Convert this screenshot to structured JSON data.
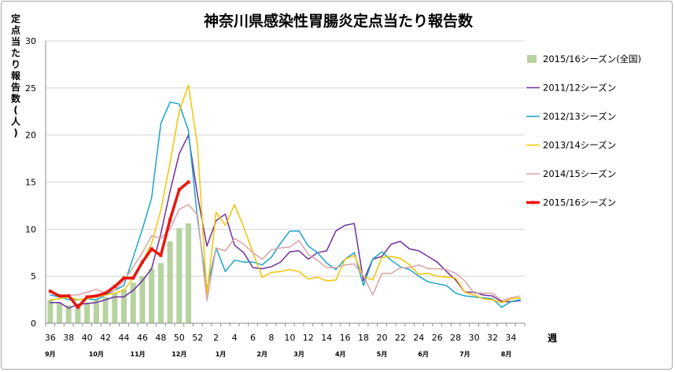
{
  "chart_data": {
    "type": "line",
    "title": "神奈川県感染性胃腸炎定点当たり報告数",
    "ylabel": "定点当たり報告数(人)",
    "xlabel": "週",
    "ylim": [
      0,
      30
    ],
    "yticks": [
      0,
      5,
      10,
      15,
      20,
      25,
      30
    ],
    "xlim": [
      36,
      87
    ],
    "xticks": [
      {
        "x": 36,
        "label": "36"
      },
      {
        "x": 38,
        "label": "38"
      },
      {
        "x": 40,
        "label": "40"
      },
      {
        "x": 42,
        "label": "42"
      },
      {
        "x": 44,
        "label": "44"
      },
      {
        "x": 46,
        "label": "46"
      },
      {
        "x": 48,
        "label": "48"
      },
      {
        "x": 50,
        "label": "50"
      },
      {
        "x": 52,
        "label": "52"
      },
      {
        "x": 54,
        "label": "2"
      },
      {
        "x": 56,
        "label": "4"
      },
      {
        "x": 58,
        "label": "6"
      },
      {
        "x": 60,
        "label": "8"
      },
      {
        "x": 62,
        "label": "10"
      },
      {
        "x": 64,
        "label": "12"
      },
      {
        "x": 66,
        "label": "14"
      },
      {
        "x": 68,
        "label": "16"
      },
      {
        "x": 70,
        "label": "18"
      },
      {
        "x": 72,
        "label": "20"
      },
      {
        "x": 74,
        "label": "22"
      },
      {
        "x": 76,
        "label": "24"
      },
      {
        "x": 78,
        "label": "26"
      },
      {
        "x": 80,
        "label": "28"
      },
      {
        "x": 82,
        "label": "30"
      },
      {
        "x": 84,
        "label": "32"
      },
      {
        "x": 86,
        "label": "34"
      }
    ],
    "months": [
      {
        "x": 36,
        "label": "9月"
      },
      {
        "x": 41,
        "label": "10月"
      },
      {
        "x": 45.5,
        "label": "11月"
      },
      {
        "x": 50,
        "label": "12月"
      },
      {
        "x": 54.5,
        "label": "1月"
      },
      {
        "x": 59,
        "label": "2月"
      },
      {
        "x": 63,
        "label": "3月"
      },
      {
        "x": 67.5,
        "label": "4月"
      },
      {
        "x": 72,
        "label": "5月"
      },
      {
        "x": 76.5,
        "label": "6月"
      },
      {
        "x": 81,
        "label": "7月"
      },
      {
        "x": 85.5,
        "label": "8月"
      }
    ],
    "grid": "horizontal",
    "legend_position": "right",
    "bars": {
      "name": "2015/16シーズン(全国)",
      "color": "#b6d3a0",
      "x": [
        36,
        37,
        38,
        39,
        40,
        41,
        42,
        43,
        44,
        45,
        46,
        47,
        48,
        49,
        50,
        51
      ],
      "values": [
        2.5,
        2.2,
        1.9,
        1.8,
        2.2,
        2.5,
        2.8,
        3.2,
        3.6,
        4.3,
        5.0,
        5.8,
        6.4,
        8.7,
        10.1,
        10.6
      ]
    },
    "series": [
      {
        "name": "2011/12シーズン",
        "color": "#7030a0",
        "width": 1.5,
        "x": [
          36,
          37,
          38,
          39,
          40,
          41,
          42,
          43,
          44,
          45,
          46,
          47,
          48,
          49,
          50,
          51,
          52,
          53,
          54,
          55,
          56,
          57,
          58,
          59,
          60,
          61,
          62,
          63,
          64,
          65,
          66,
          67,
          68,
          69,
          70,
          71,
          72,
          73,
          74,
          75,
          76,
          77,
          78,
          79,
          80,
          81,
          82,
          83,
          84,
          85,
          86,
          87
        ],
        "values": [
          2.2,
          2.2,
          1.6,
          2.0,
          2.1,
          2.2,
          2.5,
          2.8,
          2.8,
          3.5,
          4.5,
          5.8,
          9.5,
          14.0,
          18.0,
          20.0,
          13.5,
          8.2,
          10.9,
          11.6,
          8.3,
          7.5,
          5.9,
          5.8,
          6.0,
          6.5,
          7.6,
          7.7,
          6.8,
          7.5,
          7.7,
          9.8,
          10.4,
          10.6,
          4.5,
          6.8,
          7.1,
          8.4,
          8.7,
          7.9,
          7.7,
          7.1,
          6.5,
          5.5,
          4.6,
          3.3,
          3.3,
          3.0,
          2.9,
          2.3,
          2.3,
          2.4
        ]
      },
      {
        "name": "2012/13シーズン",
        "color": "#1aa4c8",
        "width": 1.5,
        "x": [
          36,
          37,
          38,
          39,
          40,
          41,
          42,
          43,
          44,
          45,
          46,
          47,
          48,
          49,
          50,
          51,
          52,
          53,
          54,
          55,
          56,
          57,
          58,
          59,
          60,
          61,
          62,
          63,
          64,
          65,
          66,
          67,
          68,
          69,
          70,
          71,
          72,
          73,
          74,
          75,
          76,
          77,
          78,
          79,
          80,
          81,
          82,
          83,
          84,
          85,
          86,
          87
        ],
        "values": [
          3.0,
          2.8,
          2.5,
          2.5,
          2.6,
          2.5,
          3.0,
          3.5,
          4.0,
          7.0,
          10.0,
          13.3,
          21.2,
          23.5,
          23.3,
          20.5,
          11.0,
          3.6,
          8.0,
          5.5,
          6.7,
          6.5,
          6.5,
          6.2,
          7.0,
          8.5,
          9.8,
          9.8,
          8.2,
          7.5,
          6.4,
          5.7,
          6.8,
          7.5,
          4.0,
          6.8,
          7.6,
          6.7,
          6.0,
          5.7,
          5.0,
          4.4,
          4.2,
          4.0,
          3.2,
          2.9,
          2.8,
          2.7,
          2.6,
          1.7,
          2.3,
          2.5
        ]
      },
      {
        "name": "2013/14シーズン",
        "color": "#f5c400",
        "width": 1.5,
        "x": [
          36,
          37,
          38,
          39,
          40,
          41,
          42,
          43,
          44,
          45,
          46,
          47,
          48,
          49,
          50,
          51,
          52,
          53,
          54,
          55,
          56,
          57,
          58,
          59,
          60,
          61,
          62,
          63,
          64,
          65,
          66,
          67,
          68,
          69,
          70,
          71,
          72,
          73,
          74,
          75,
          76,
          77,
          78,
          79,
          80,
          81,
          82,
          83,
          84,
          85,
          86,
          87
        ],
        "values": [
          2.5,
          2.6,
          2.8,
          2.5,
          2.6,
          2.8,
          3.0,
          3.2,
          3.5,
          4.8,
          6.5,
          8.5,
          12.0,
          17.0,
          22.5,
          25.3,
          18.8,
          3.0,
          11.8,
          10.4,
          12.6,
          10.2,
          7.5,
          4.9,
          5.4,
          5.5,
          5.7,
          5.5,
          4.7,
          4.9,
          4.5,
          4.6,
          6.8,
          7.2,
          5.0,
          4.6,
          7.0,
          7.1,
          6.9,
          6.2,
          5.2,
          5.3,
          5.0,
          4.9,
          4.8,
          3.3,
          3.0,
          2.6,
          2.5,
          2.2,
          2.6,
          2.7
        ]
      },
      {
        "name": "2014/15シーズン",
        "color": "#d9a3a3",
        "width": 1.5,
        "x": [
          36,
          37,
          38,
          39,
          40,
          41,
          42,
          43,
          44,
          45,
          46,
          47,
          48,
          49,
          50,
          51,
          52,
          53,
          54,
          55,
          56,
          57,
          58,
          59,
          60,
          61,
          62,
          63,
          64,
          65,
          66,
          67,
          68,
          69,
          70,
          71,
          72,
          73,
          74,
          75,
          76,
          77,
          78,
          79,
          80,
          81,
          82,
          83,
          84,
          85,
          86,
          87
        ],
        "values": [
          3.3,
          3.0,
          3.0,
          3.0,
          3.3,
          3.6,
          3.2,
          3.5,
          4.5,
          6.0,
          7.5,
          9.3,
          9.0,
          10.0,
          12.1,
          12.6,
          11.5,
          2.4,
          8.0,
          7.7,
          9.0,
          8.4,
          7.5,
          6.8,
          7.8,
          8.0,
          8.1,
          8.8,
          7.3,
          6.7,
          5.9,
          5.9,
          6.2,
          6.3,
          5.0,
          3.0,
          5.3,
          5.3,
          5.9,
          5.9,
          6.2,
          5.8,
          5.8,
          5.7,
          5.3,
          4.5,
          3.2,
          3.2,
          3.2,
          2.4,
          2.7,
          2.9
        ]
      },
      {
        "name": "2015/16シーズン",
        "color": "#e8160c",
        "width": 3.5,
        "marker": true,
        "x": [
          36,
          37,
          38,
          39,
          40,
          41,
          42,
          43,
          44,
          45,
          46,
          47,
          48,
          49,
          50,
          51
        ],
        "values": [
          3.4,
          2.9,
          2.9,
          1.7,
          2.8,
          2.9,
          3.2,
          3.9,
          4.8,
          4.8,
          6.5,
          7.9,
          7.2,
          11.0,
          14.2,
          15.0
        ]
      }
    ]
  }
}
